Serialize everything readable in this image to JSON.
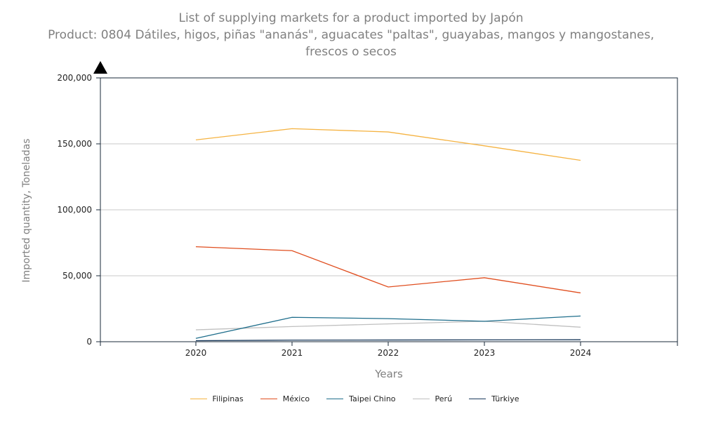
{
  "chart_data": {
    "type": "line",
    "title_lines": [
      "List of supplying markets for a product imported by Japón",
      "Product: 0804 Dátiles, higos, piñas \"ananás\", aguacates \"paltas\", guayabas, mangos y mangostanes,",
      "frescos o secos"
    ],
    "xlabel": "Years",
    "ylabel": "Imported quantity, Toneladas",
    "x": [
      "2020",
      "2021",
      "2022",
      "2023",
      "2024"
    ],
    "ylim": [
      0,
      200000
    ],
    "yticks": [
      "0",
      "50,000",
      "100,000",
      "150,000",
      "200,000"
    ],
    "ytick_values": [
      0,
      50000,
      100000,
      150000,
      200000
    ],
    "grid": true,
    "legend_position": "bottom",
    "series": [
      {
        "name": "Filipinas",
        "color": "#F5B342",
        "values": [
          153000,
          161500,
          159000,
          148500,
          137500
        ]
      },
      {
        "name": "México",
        "color": "#E04E1F",
        "values": [
          72000,
          69000,
          41500,
          48500,
          37000
        ]
      },
      {
        "name": "Taipei Chino",
        "color": "#1F6E8C",
        "values": [
          2500,
          18500,
          17500,
          15500,
          19500
        ]
      },
      {
        "name": "Perú",
        "color": "#C0C0C0",
        "values": [
          9000,
          11500,
          13500,
          15500,
          11000
        ]
      },
      {
        "name": "Türkiye",
        "color": "#1A3A5C",
        "values": [
          800,
          1200,
          1300,
          1400,
          1500
        ]
      }
    ]
  }
}
